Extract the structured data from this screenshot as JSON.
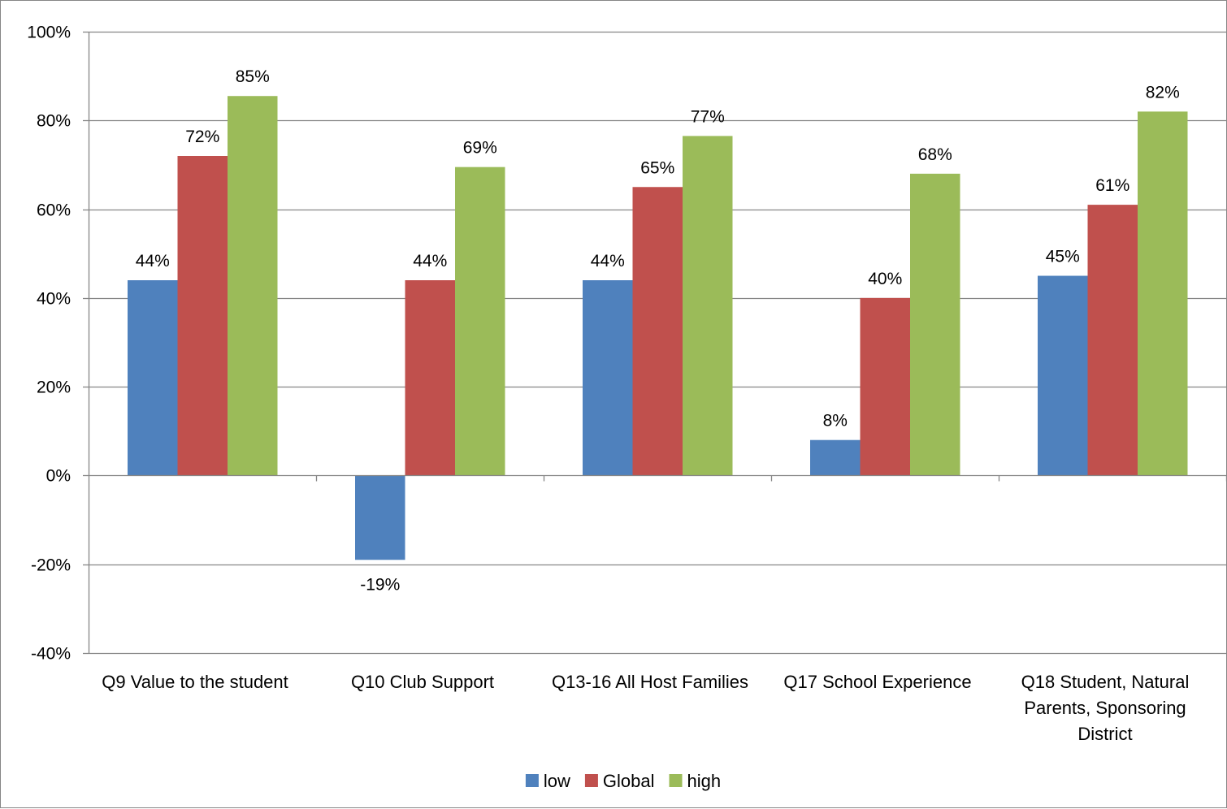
{
  "chart_data": {
    "type": "bar",
    "categories": [
      [
        "Q9 Value to the student"
      ],
      [
        "Q10 Club Support"
      ],
      [
        "Q13-16 All Host Families"
      ],
      [
        "Q17 School Experience"
      ],
      [
        "Q18 Student, Natural",
        "Parents, Sponsoring",
        "District"
      ]
    ],
    "series": [
      {
        "name": "low",
        "color": "#4F81BD",
        "values": [
          44,
          -19,
          44,
          8,
          45
        ],
        "labels": [
          "44%",
          "-19%",
          "44%",
          "8%",
          "45%"
        ]
      },
      {
        "name": "Global",
        "color": "#C0504D",
        "values": [
          72,
          44,
          65,
          40,
          61
        ],
        "labels": [
          "72%",
          "44%",
          "65%",
          "40%",
          "61%"
        ]
      },
      {
        "name": "high",
        "color": "#9BBB59",
        "values": [
          85.5,
          69.5,
          76.5,
          68,
          82
        ],
        "labels": [
          "85%",
          "69%",
          "77%",
          "68%",
          "82%"
        ]
      }
    ],
    "ylim": [
      -40,
      100
    ],
    "y_ticks": [
      "-40%",
      "-20%",
      "0%",
      "20%",
      "40%",
      "60%",
      "80%",
      "100%"
    ],
    "y_tick_values": [
      -40,
      -20,
      0,
      20,
      40,
      60,
      80,
      100
    ],
    "grid": true,
    "legend_position": "bottom",
    "gridline_color": "#868686"
  }
}
